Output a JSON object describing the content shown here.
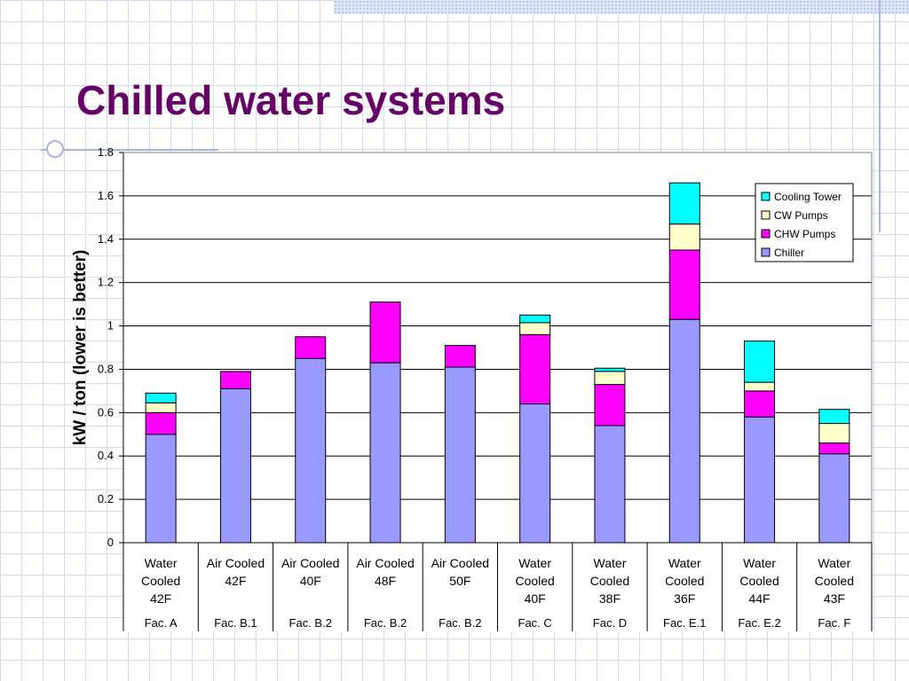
{
  "slide": {
    "title": "Chilled water systems"
  },
  "chart_data": {
    "type": "bar",
    "stacked": true,
    "title": "",
    "xlabel": "",
    "ylabel": "kW / ton (lower is better)",
    "ylim": [
      0,
      1.8
    ],
    "yticks": [
      0,
      0.2,
      0.4,
      0.6,
      0.8,
      1,
      1.2,
      1.4,
      1.6,
      1.8
    ],
    "grid": true,
    "legend_position": "top-right",
    "categories": [
      {
        "lines": [
          "Water",
          "Cooled",
          "42F"
        ],
        "group": "Fac. A"
      },
      {
        "lines": [
          "Air Cooled",
          "42F"
        ],
        "group": "Fac. B.1"
      },
      {
        "lines": [
          "Air Cooled",
          "40F"
        ],
        "group": "Fac. B.2"
      },
      {
        "lines": [
          "Air Cooled",
          "48F"
        ],
        "group": "Fac. B.2"
      },
      {
        "lines": [
          "Air Cooled",
          "50F"
        ],
        "group": "Fac. B.2"
      },
      {
        "lines": [
          "Water",
          "Cooled",
          "40F"
        ],
        "group": "Fac. C"
      },
      {
        "lines": [
          "Water",
          "Cooled",
          "38F"
        ],
        "group": "Fac. D"
      },
      {
        "lines": [
          "Water",
          "Cooled",
          "36F"
        ],
        "group": "Fac. E.1"
      },
      {
        "lines": [
          "Water",
          "Cooled",
          "44F"
        ],
        "group": "Fac. E.2"
      },
      {
        "lines": [
          "Water",
          "Cooled",
          "43F"
        ],
        "group": "Fac. F"
      }
    ],
    "series": [
      {
        "name": "Chiller",
        "color": "#9999ff",
        "values": [
          0.5,
          0.71,
          0.85,
          0.83,
          0.81,
          0.64,
          0.54,
          1.03,
          0.58,
          0.41
        ]
      },
      {
        "name": "CHW Pumps",
        "color": "#ff00ff",
        "values": [
          0.1,
          0.08,
          0.1,
          0.28,
          0.1,
          0.32,
          0.19,
          0.32,
          0.12,
          0.05
        ]
      },
      {
        "name": "CW Pumps",
        "color": "#ffffcc",
        "values": [
          0.045,
          0,
          0,
          0,
          0,
          0.055,
          0.06,
          0.12,
          0.04,
          0.09
        ]
      },
      {
        "name": "Cooling Tower",
        "color": "#00ffff",
        "values": [
          0.045,
          0,
          0,
          0,
          0,
          0.035,
          0.015,
          0.19,
          0.19,
          0.065
        ]
      }
    ]
  }
}
